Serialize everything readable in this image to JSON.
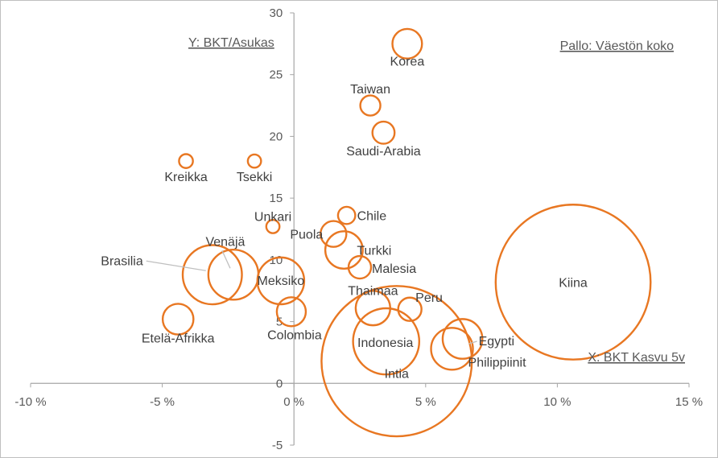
{
  "chart_data": {
    "type": "scatter",
    "subtype": "bubble",
    "x_axis_title": "X: BKT Kasvu 5v",
    "y_axis_title": "Y: BKT/Asukas",
    "size_label": "Pallo: Väestön koko",
    "xlim": [
      -10,
      15
    ],
    "ylim": [
      -5,
      30
    ],
    "x_ticks": [
      -10,
      -5,
      0,
      5,
      10,
      15
    ],
    "x_tick_labels": [
      "-10 %",
      "-5 %",
      "0 %",
      "5 %",
      "10 %",
      "15 %"
    ],
    "y_ticks": [
      -5,
      0,
      5,
      10,
      15,
      20,
      25,
      30
    ],
    "y_tick_labels": [
      "-5",
      "0",
      "5",
      "10",
      "15",
      "20",
      "25",
      "30"
    ],
    "grid": false,
    "marker_color": "#E87722",
    "points": [
      {
        "label": "Korea",
        "x": 4.3,
        "y": 27.5,
        "size": 50
      },
      {
        "label": "Taiwan",
        "x": 2.9,
        "y": 22.5,
        "size": 23
      },
      {
        "label": "Saudi-Arabia",
        "x": 3.4,
        "y": 20.3,
        "size": 28
      },
      {
        "label": "Kreikka",
        "x": -4.1,
        "y": 18.0,
        "size": 11
      },
      {
        "label": "Tsekki",
        "x": -1.5,
        "y": 18.0,
        "size": 10
      },
      {
        "label": "Unkari",
        "x": -0.8,
        "y": 12.7,
        "size": 10
      },
      {
        "label": "Chile",
        "x": 2.0,
        "y": 13.6,
        "size": 17
      },
      {
        "label": "Puola",
        "x": 1.5,
        "y": 12.1,
        "size": 38
      },
      {
        "label": "Turkki",
        "x": 1.9,
        "y": 10.8,
        "size": 80
      },
      {
        "label": "Malesia",
        "x": 2.5,
        "y": 9.4,
        "size": 29
      },
      {
        "label": "Venäjä",
        "x": -2.3,
        "y": 8.8,
        "size": 143
      },
      {
        "label": "Brasilia",
        "x": -3.1,
        "y": 8.8,
        "size": 200
      },
      {
        "label": "Meksiko",
        "x": -0.5,
        "y": 8.3,
        "size": 125
      },
      {
        "label": "Kiina",
        "x": 10.6,
        "y": 8.2,
        "size": 1370
      },
      {
        "label": "Thaimaa",
        "x": 3.0,
        "y": 6.1,
        "size": 68
      },
      {
        "label": "Peru",
        "x": 4.4,
        "y": 6.0,
        "size": 31
      },
      {
        "label": "Colombia",
        "x": -0.1,
        "y": 5.8,
        "size": 48
      },
      {
        "label": "Etelä-Afrikka",
        "x": -4.4,
        "y": 5.2,
        "size": 54
      },
      {
        "label": "Egypti",
        "x": 6.4,
        "y": 3.6,
        "size": 90
      },
      {
        "label": "Indonesia",
        "x": 3.5,
        "y": 3.4,
        "size": 250
      },
      {
        "label": "Philippiinit",
        "x": 6.0,
        "y": 2.8,
        "size": 100
      },
      {
        "label": "Intia",
        "x": 3.9,
        "y": 1.8,
        "size": 1290
      }
    ]
  }
}
